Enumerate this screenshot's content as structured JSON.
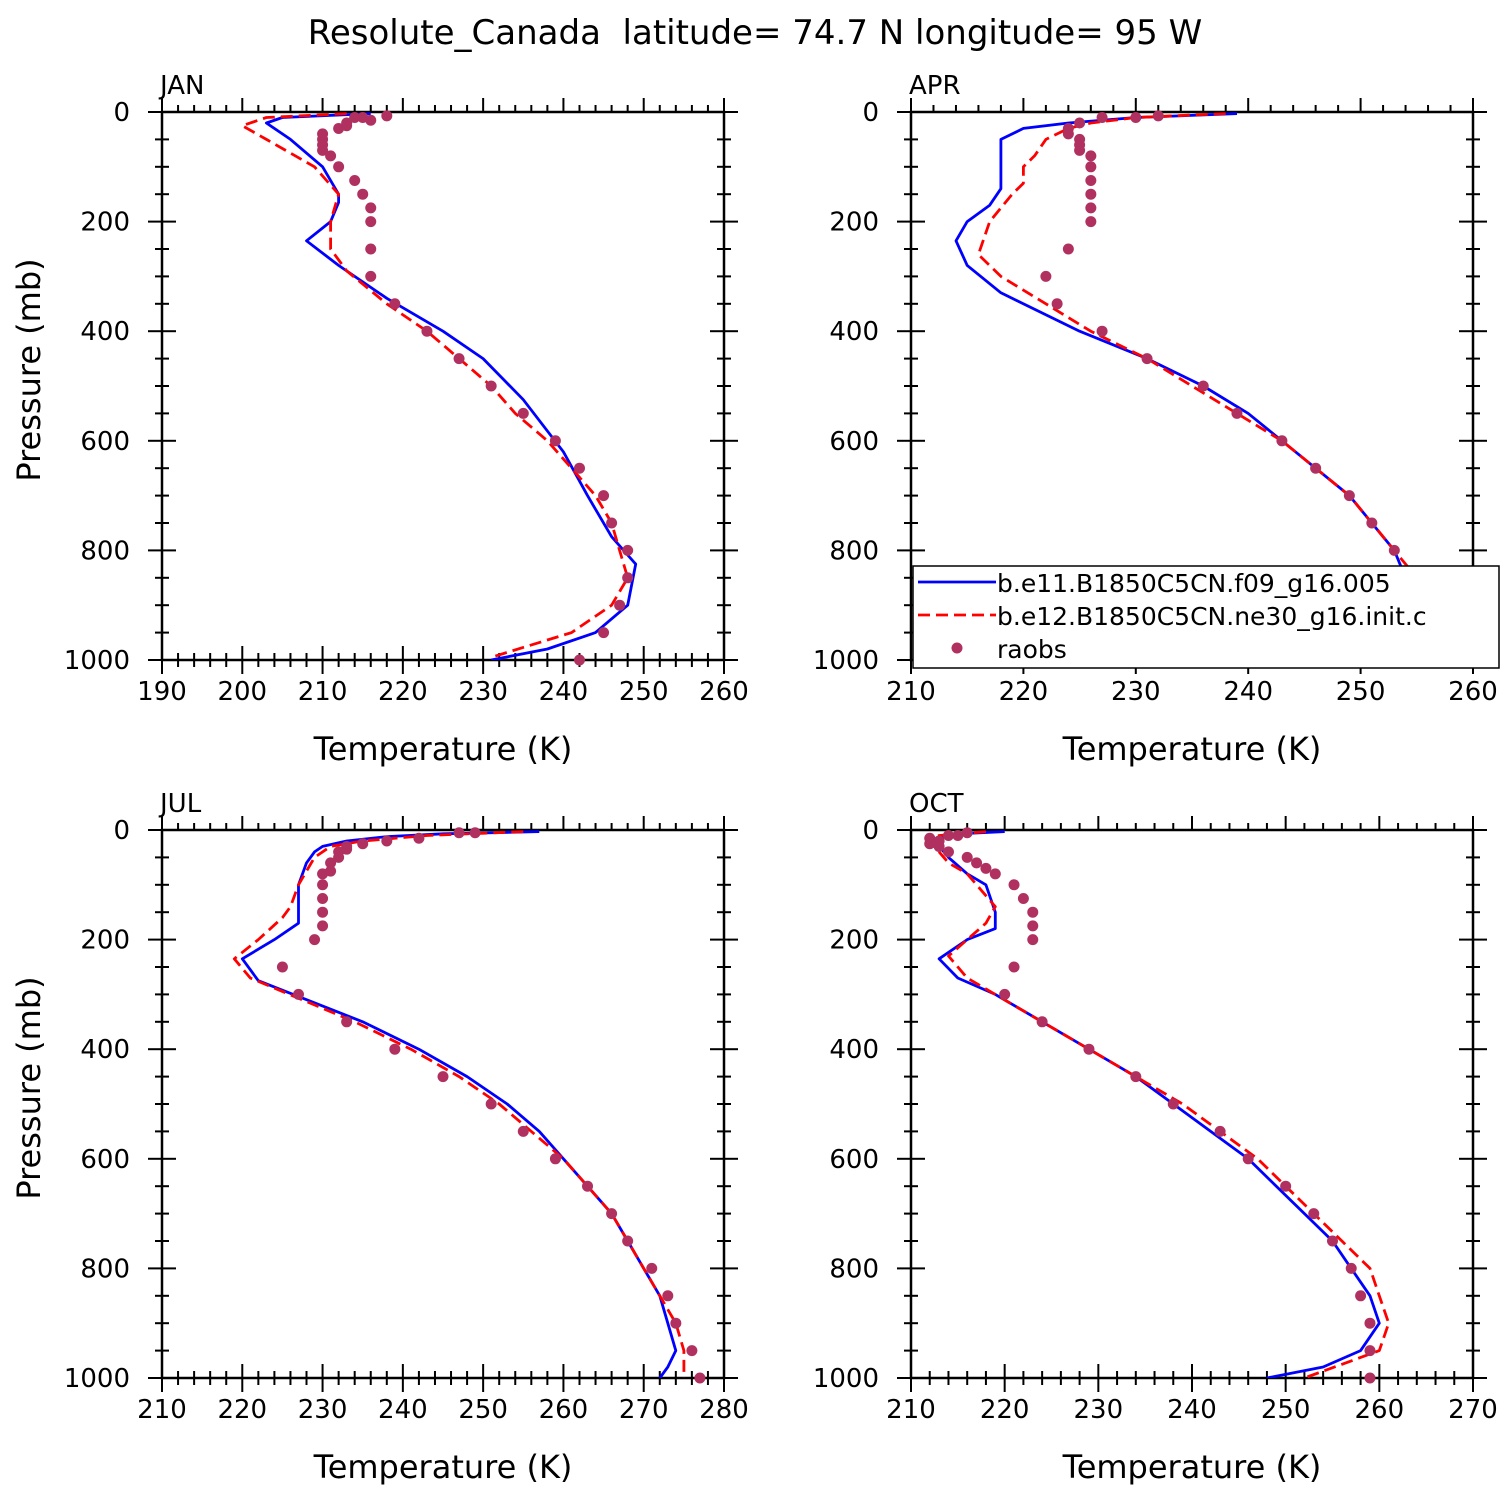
{
  "figure": {
    "title": "Resolute_Canada  latitude= 74.7 N longitude= 95 W"
  },
  "legend": {
    "placement": "lower-right of APR panel",
    "entries": [
      {
        "label": "b.e11.B1850C5CN.f09_g16.005",
        "color": "#0000ff",
        "style": "solid"
      },
      {
        "label": "b.e12.B1850C5CN.ne30_g16.init.c",
        "color": "#ff0000",
        "style": "dashed"
      },
      {
        "label": "raobs",
        "color": "#b03060",
        "style": "marker"
      }
    ]
  },
  "chart_data": [
    {
      "type": "line",
      "title": "JAN",
      "xlabel": "Temperature (K)",
      "ylabel": "Pressure (mb)",
      "xlim": [
        190,
        260
      ],
      "xticks": [
        190,
        200,
        210,
        220,
        230,
        240,
        250,
        260
      ],
      "ylim": [
        1000,
        0
      ],
      "yticks": [
        0,
        200,
        400,
        600,
        800,
        1000
      ],
      "series": [
        {
          "color": "#0000ff",
          "style": "solid",
          "p": [
            3,
            10,
            20,
            50,
            100,
            150,
            165,
            200,
            235,
            280,
            340,
            400,
            450,
            525,
            620,
            700,
            775,
            825,
            900,
            950,
            980,
            1000
          ],
          "t": [
            216,
            205,
            203,
            206,
            210,
            212,
            212,
            211,
            208,
            212,
            218,
            225,
            230,
            235,
            240,
            243,
            246,
            249,
            248,
            244,
            238,
            231
          ]
        },
        {
          "color": "#ff0000",
          "style": "dashed",
          "p": [
            3,
            10,
            25,
            50,
            100,
            150,
            200,
            250,
            290,
            350,
            400,
            450,
            500,
            550,
            600,
            650,
            700,
            750,
            800,
            850,
            900,
            950,
            995
          ],
          "t": [
            213,
            203,
            200,
            203,
            209,
            212,
            211,
            211,
            213,
            218,
            223,
            227,
            231,
            234,
            238,
            241,
            244,
            246,
            247,
            248,
            246,
            241,
            231
          ]
        },
        {
          "color": "#b03060",
          "style": "markers",
          "p": [
            7,
            10,
            10,
            15,
            20,
            25,
            30,
            40,
            50,
            60,
            70,
            80,
            100,
            125,
            150,
            175,
            200,
            250,
            300,
            350,
            400,
            450,
            500,
            550,
            600,
            650,
            700,
            750,
            800,
            850,
            900,
            950,
            1000
          ],
          "t": [
            218,
            215,
            214,
            216,
            213,
            213,
            212,
            210,
            210,
            210,
            210,
            211,
            212,
            214,
            215,
            216,
            216,
            216,
            216,
            219,
            223,
            227,
            231,
            235,
            239,
            242,
            245,
            246,
            248,
            248,
            247,
            245,
            242
          ]
        }
      ]
    },
    {
      "type": "line",
      "title": "APR",
      "xlabel": "Temperature (K)",
      "ylabel": "",
      "xlim": [
        210,
        260
      ],
      "xticks": [
        210,
        220,
        230,
        240,
        250,
        260
      ],
      "ylim": [
        1000,
        0
      ],
      "yticks": [
        0,
        200,
        400,
        600,
        800,
        1000
      ],
      "series": [
        {
          "color": "#0000ff",
          "style": "solid",
          "p": [
            3,
            10,
            20,
            30,
            50,
            100,
            140,
            170,
            200,
            235,
            280,
            330,
            400,
            450,
            500,
            550,
            600,
            650,
            700,
            750,
            800,
            850,
            900,
            950,
            980,
            1000
          ],
          "t": [
            239,
            230,
            224,
            220,
            218,
            218,
            218,
            217,
            215,
            214,
            215,
            218,
            225,
            231,
            236,
            240,
            243,
            246,
            249,
            251,
            253,
            254,
            255,
            253,
            250,
            245
          ]
        },
        {
          "color": "#ff0000",
          "style": "dashed",
          "p": [
            3,
            10,
            20,
            30,
            50,
            80,
            100,
            130,
            150,
            200,
            260,
            300,
            350,
            400,
            450,
            500,
            550,
            600,
            650,
            700,
            750,
            800,
            850,
            900,
            950,
            1000
          ],
          "t": [
            238,
            230,
            226,
            224,
            222,
            221,
            220,
            220,
            219,
            217,
            216,
            218,
            222,
            226,
            231,
            235,
            239,
            243,
            246,
            249,
            251,
            253,
            255,
            255,
            253,
            249
          ]
        },
        {
          "color": "#b03060",
          "style": "markers",
          "p": [
            7,
            10,
            10,
            20,
            30,
            40,
            50,
            60,
            70,
            80,
            100,
            125,
            150,
            175,
            200,
            250,
            300,
            350,
            400,
            450,
            500,
            550,
            600,
            650,
            700,
            750,
            800,
            850,
            900,
            950,
            1000
          ],
          "t": [
            232,
            230,
            227,
            225,
            224,
            224,
            225,
            225,
            225,
            226,
            226,
            226,
            226,
            226,
            226,
            224,
            222,
            223,
            227,
            231,
            236,
            239,
            243,
            246,
            249,
            251,
            253,
            254,
            254,
            253,
            251
          ]
        }
      ]
    },
    {
      "type": "line",
      "title": "JUL",
      "xlabel": "Temperature (K)",
      "ylabel": "Pressure (mb)",
      "xlim": [
        210,
        280
      ],
      "xticks": [
        210,
        220,
        230,
        240,
        250,
        260,
        270,
        280
      ],
      "ylim": [
        1000,
        0
      ],
      "yticks": [
        0,
        200,
        400,
        600,
        800,
        1000
      ],
      "series": [
        {
          "color": "#0000ff",
          "style": "solid",
          "p": [
            3,
            7,
            12,
            20,
            30,
            40,
            60,
            100,
            170,
            200,
            235,
            275,
            350,
            400,
            450,
            500,
            550,
            600,
            650,
            700,
            750,
            800,
            850,
            900,
            950,
            980,
            1000
          ],
          "t": [
            257,
            245,
            238,
            233,
            230,
            229,
            228,
            227,
            227,
            224,
            220,
            222,
            235,
            242,
            248,
            253,
            257,
            260,
            263,
            266,
            268,
            270,
            272,
            273,
            274,
            273,
            272
          ]
        },
        {
          "color": "#ff0000",
          "style": "dashed",
          "p": [
            3,
            10,
            20,
            30,
            50,
            100,
            140,
            160,
            200,
            235,
            270,
            350,
            400,
            450,
            500,
            550,
            600,
            650,
            700,
            750,
            800,
            850,
            900,
            950,
            1000
          ],
          "t": [
            255,
            243,
            235,
            231,
            229,
            227,
            226,
            225,
            222,
            219,
            221,
            234,
            241,
            247,
            252,
            256,
            260,
            263,
            266,
            268,
            270,
            272,
            274,
            275,
            275
          ]
        },
        {
          "color": "#b03060",
          "style": "markers",
          "p": [
            5,
            5,
            15,
            20,
            25,
            30,
            35,
            40,
            50,
            60,
            75,
            80,
            100,
            125,
            150,
            175,
            200,
            250,
            300,
            350,
            400,
            450,
            500,
            550,
            600,
            650,
            700,
            750,
            800,
            850,
            900,
            950,
            1000
          ],
          "t": [
            249,
            247,
            242,
            238,
            235,
            233,
            233,
            232,
            232,
            231,
            231,
            230,
            230,
            230,
            230,
            230,
            229,
            225,
            227,
            233,
            239,
            245,
            251,
            255,
            259,
            263,
            266,
            268,
            271,
            273,
            274,
            276,
            277
          ]
        }
      ]
    },
    {
      "type": "line",
      "title": "OCT",
      "xlabel": "Temperature (K)",
      "ylabel": "",
      "xlim": [
        210,
        270
      ],
      "xticks": [
        210,
        220,
        230,
        240,
        250,
        260,
        270
      ],
      "ylim": [
        1000,
        0
      ],
      "yticks": [
        0,
        200,
        400,
        600,
        800,
        1000
      ],
      "series": [
        {
          "color": "#0000ff",
          "style": "solid",
          "p": [
            3,
            7,
            15,
            30,
            50,
            80,
            100,
            150,
            180,
            200,
            235,
            270,
            300,
            350,
            400,
            450,
            500,
            550,
            600,
            650,
            700,
            750,
            800,
            850,
            900,
            950,
            980,
            1000
          ],
          "t": [
            220,
            215,
            213,
            213,
            214,
            216,
            218,
            219,
            219,
            216,
            213,
            215,
            219,
            224,
            229,
            234,
            238,
            242,
            246,
            249,
            252,
            255,
            257,
            259,
            260,
            258,
            254,
            248
          ]
        },
        {
          "color": "#ff0000",
          "style": "dashed",
          "p": [
            3,
            10,
            20,
            40,
            60,
            80,
            100,
            140,
            170,
            200,
            230,
            270,
            320,
            380,
            400,
            450,
            500,
            550,
            600,
            650,
            700,
            750,
            800,
            850,
            900,
            950,
            1000
          ],
          "t": [
            218,
            213,
            212,
            213,
            214,
            216,
            217,
            219,
            218,
            216,
            214,
            216,
            221,
            227,
            229,
            234,
            239,
            243,
            247,
            250,
            253,
            256,
            259,
            260,
            261,
            260,
            252
          ]
        },
        {
          "color": "#b03060",
          "style": "markers",
          "p": [
            5,
            10,
            10,
            15,
            20,
            25,
            30,
            40,
            50,
            60,
            70,
            80,
            100,
            125,
            150,
            175,
            200,
            250,
            300,
            350,
            400,
            450,
            500,
            550,
            600,
            650,
            700,
            750,
            800,
            850,
            900,
            950,
            1000
          ],
          "t": [
            216,
            215,
            214,
            212,
            213,
            212,
            213,
            214,
            216,
            217,
            218,
            219,
            221,
            222,
            223,
            223,
            223,
            221,
            220,
            224,
            229,
            234,
            238,
            243,
            246,
            250,
            253,
            255,
            257,
            258,
            259,
            259,
            259
          ]
        }
      ]
    }
  ]
}
